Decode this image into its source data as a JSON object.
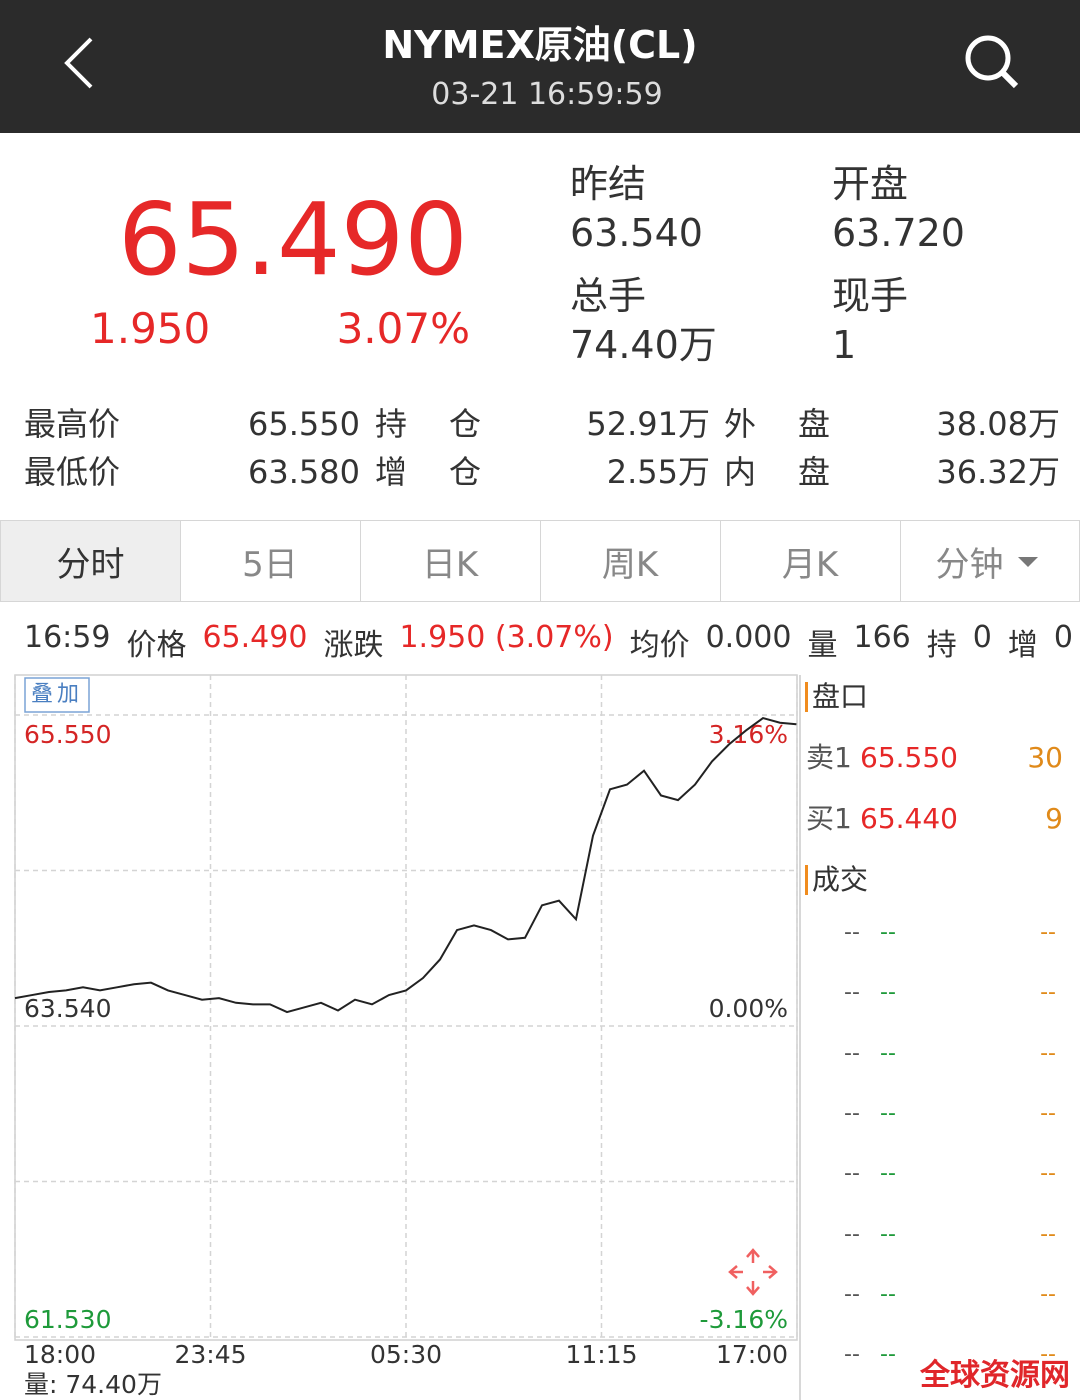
{
  "header": {
    "title": "NYMEX原油(CL)",
    "time": "03-21 16:59:59"
  },
  "quote": {
    "price": "65.490",
    "change": "1.950",
    "change_pct": "3.07%",
    "stats": [
      {
        "label": "昨结",
        "value": "63.540"
      },
      {
        "label": "开盘",
        "value": "63.720"
      },
      {
        "label": "总手",
        "value": "74.40万"
      },
      {
        "label": "现手",
        "value": "1"
      }
    ],
    "details": [
      [
        "最高价",
        "65.550",
        "持仓",
        "52.91万",
        "外盘",
        "38.08万"
      ],
      [
        "最低价",
        "63.580",
        "增仓",
        "2.55万",
        "内盘",
        "36.32万"
      ]
    ]
  },
  "tabs": [
    "分时",
    "5日",
    "日K",
    "周K",
    "月K",
    "分钟"
  ],
  "info_bar": [
    {
      "text": "16:59",
      "tone": "plain"
    },
    {
      "text": "价格",
      "tone": "plain"
    },
    {
      "text": "65.490",
      "tone": "up"
    },
    {
      "text": "涨跌",
      "tone": "plain"
    },
    {
      "text": "1.950 (3.07%)",
      "tone": "up"
    },
    {
      "text": "均价",
      "tone": "plain"
    },
    {
      "text": "0.000",
      "tone": "plain"
    },
    {
      "text": "量",
      "tone": "plain"
    },
    {
      "text": "166",
      "tone": "plain"
    },
    {
      "text": "持",
      "tone": "plain"
    },
    {
      "text": "0",
      "tone": "plain"
    },
    {
      "text": "增",
      "tone": "plain"
    },
    {
      "text": "0",
      "tone": "plain"
    }
  ],
  "overlay_button": "叠加",
  "chart_data": {
    "type": "line",
    "color": "#222222",
    "x": [
      0,
      30,
      60,
      90,
      120,
      150,
      180,
      210,
      240,
      270,
      300,
      330,
      360,
      390,
      420,
      450,
      480,
      510,
      540,
      570,
      600,
      630,
      660,
      690,
      720,
      750,
      780,
      810,
      840,
      870,
      900,
      930,
      960,
      990,
      1020,
      1050,
      1080,
      1110,
      1140,
      1170,
      1200,
      1230,
      1260,
      1290,
      1320,
      1350,
      1379
    ],
    "values": [
      63.72,
      63.74,
      63.76,
      63.77,
      63.79,
      63.77,
      63.79,
      63.81,
      63.82,
      63.77,
      63.74,
      63.71,
      63.72,
      63.69,
      63.68,
      63.68,
      63.63,
      63.66,
      63.69,
      63.64,
      63.71,
      63.68,
      63.74,
      63.77,
      63.85,
      63.97,
      64.16,
      64.19,
      64.16,
      64.1,
      64.11,
      64.32,
      64.35,
      64.23,
      64.77,
      65.07,
      65.1,
      65.19,
      65.03,
      65.0,
      65.1,
      65.25,
      65.36,
      65.45,
      65.53,
      65.5,
      65.49
    ],
    "xlim": [
      0,
      1380
    ],
    "xticks": [
      {
        "value": 0,
        "label": "18:00"
      },
      {
        "value": 345,
        "label": "23:45"
      },
      {
        "value": 690,
        "label": "05:30"
      },
      {
        "value": 1035,
        "label": "11:15"
      },
      {
        "value": 1380,
        "label": "17:00"
      }
    ],
    "ylim": [
      61.53,
      65.55
    ],
    "yticks": [
      {
        "value": 61.53,
        "label": "61.530"
      },
      {
        "value": 63.54,
        "label": "63.540"
      },
      {
        "value": 65.55,
        "label": "65.550"
      }
    ],
    "ygrid": [
      61.53,
      62.535,
      63.54,
      64.545,
      65.55
    ],
    "y2lim": [
      -3.16,
      3.16
    ],
    "y2ticks": [
      {
        "value": -3.16,
        "label": "-3.16%"
      },
      {
        "value": 0,
        "label": "0.00%"
      },
      {
        "value": 3.16,
        "label": "3.16%"
      }
    ],
    "grid": true,
    "volume_label": "量: 74.40万"
  },
  "order_book": {
    "title": "盘口",
    "asks": [
      {
        "label": "卖1",
        "price": "65.550",
        "volume": "30"
      }
    ],
    "bids": [
      {
        "label": "买1",
        "price": "65.440",
        "volume": "9"
      }
    ]
  },
  "trades": {
    "title": "成交",
    "rows": [
      [
        "--",
        "--",
        "--"
      ],
      [
        "--",
        "--",
        "--"
      ],
      [
        "--",
        "--",
        "--"
      ],
      [
        "--",
        "--",
        "--"
      ],
      [
        "--",
        "--",
        "--"
      ],
      [
        "--",
        "--",
        "--"
      ],
      [
        "--",
        "--",
        "--"
      ],
      [
        "--",
        "--",
        "--"
      ]
    ]
  },
  "watermark": "全球资源网"
}
